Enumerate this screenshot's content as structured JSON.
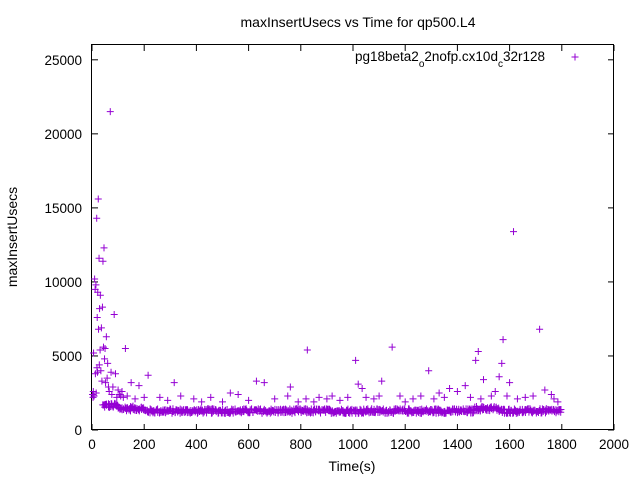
{
  "chart_data": {
    "type": "scatter",
    "title": "maxInsertUsecs vs Time for qp500.L4",
    "xlabel": "Time(s)",
    "ylabel": "maxInsertUsecs",
    "xlim": [
      0,
      2000
    ],
    "ylim": [
      0,
      26000
    ],
    "x_ticks": [
      0,
      200,
      400,
      600,
      800,
      1000,
      1200,
      1400,
      1600,
      1800,
      2000
    ],
    "y_ticks": [
      0,
      5000,
      10000,
      15000,
      20000,
      25000
    ],
    "x_tick_labels": [
      "0",
      "200",
      "400",
      "600",
      "800",
      "1000",
      "1200",
      "1400",
      "1600",
      "1800",
      "2000"
    ],
    "y_tick_labels": [
      "0",
      "5000",
      "10000",
      "15000",
      "20000",
      "25000"
    ],
    "grid": false,
    "legend_position": "top-right",
    "series": [
      {
        "name_parts": [
          "pg18beta2",
          "o",
          "2nofp.cx10d",
          "c",
          "32r128"
        ],
        "color": "#9400d3",
        "marker": "plus",
        "outliers": [
          [
            2,
            2400
          ],
          [
            4,
            2200
          ],
          [
            5,
            2600
          ],
          [
            6,
            5200
          ],
          [
            8,
            2300
          ],
          [
            10,
            10200
          ],
          [
            12,
            9500
          ],
          [
            13,
            3800
          ],
          [
            15,
            9800
          ],
          [
            16,
            2500
          ],
          [
            18,
            14300
          ],
          [
            19,
            4200
          ],
          [
            20,
            7600
          ],
          [
            21,
            3900
          ],
          [
            22,
            9300
          ],
          [
            24,
            15600
          ],
          [
            25,
            6800
          ],
          [
            27,
            11600
          ],
          [
            28,
            4400
          ],
          [
            29,
            8200
          ],
          [
            31,
            5400
          ],
          [
            32,
            9100
          ],
          [
            34,
            4000
          ],
          [
            36,
            6900
          ],
          [
            38,
            3300
          ],
          [
            40,
            8300
          ],
          [
            42,
            11400
          ],
          [
            44,
            5600
          ],
          [
            46,
            12300
          ],
          [
            48,
            4800
          ],
          [
            50,
            5500
          ],
          [
            52,
            3200
          ],
          [
            55,
            6300
          ],
          [
            58,
            3500
          ],
          [
            60,
            4500
          ],
          [
            63,
            2900
          ],
          [
            66,
            2600
          ],
          [
            70,
            21500
          ],
          [
            73,
            3900
          ],
          [
            76,
            2400
          ],
          [
            80,
            2900
          ],
          [
            85,
            7800
          ],
          [
            90,
            3800
          ],
          [
            95,
            2200
          ],
          [
            100,
            2700
          ],
          [
            105,
            2400
          ],
          [
            110,
            2300
          ],
          [
            115,
            2600
          ],
          [
            120,
            2200
          ],
          [
            128,
            5500
          ],
          [
            135,
            2300
          ],
          [
            150,
            3200
          ],
          [
            165,
            2100
          ],
          [
            180,
            3000
          ],
          [
            200,
            2200
          ],
          [
            215,
            3700
          ],
          [
            260,
            2200
          ],
          [
            290,
            2000
          ],
          [
            315,
            3200
          ],
          [
            340,
            2300
          ],
          [
            390,
            2100
          ],
          [
            420,
            1900
          ],
          [
            455,
            2200
          ],
          [
            500,
            1900
          ],
          [
            530,
            2500
          ],
          [
            560,
            2400
          ],
          [
            600,
            2000
          ],
          [
            630,
            3300
          ],
          [
            660,
            3200
          ],
          [
            700,
            2100
          ],
          [
            750,
            2300
          ],
          [
            760,
            2900
          ],
          [
            790,
            1900
          ],
          [
            820,
            2100
          ],
          [
            825,
            5400
          ],
          [
            850,
            1900
          ],
          [
            870,
            2200
          ],
          [
            900,
            2100
          ],
          [
            920,
            2300
          ],
          [
            950,
            2000
          ],
          [
            980,
            2200
          ],
          [
            1010,
            4700
          ],
          [
            1020,
            3100
          ],
          [
            1035,
            2800
          ],
          [
            1050,
            2200
          ],
          [
            1080,
            2100
          ],
          [
            1100,
            2300
          ],
          [
            1110,
            3300
          ],
          [
            1150,
            5600
          ],
          [
            1180,
            2300
          ],
          [
            1200,
            1900
          ],
          [
            1230,
            2100
          ],
          [
            1260,
            2300
          ],
          [
            1290,
            4000
          ],
          [
            1310,
            2100
          ],
          [
            1330,
            2500
          ],
          [
            1350,
            2200
          ],
          [
            1370,
            2800
          ],
          [
            1400,
            2600
          ],
          [
            1430,
            3000
          ],
          [
            1450,
            2200
          ],
          [
            1470,
            4700
          ],
          [
            1480,
            5300
          ],
          [
            1490,
            2100
          ],
          [
            1500,
            3400
          ],
          [
            1530,
            2300
          ],
          [
            1545,
            2600
          ],
          [
            1560,
            3600
          ],
          [
            1570,
            4500
          ],
          [
            1575,
            6100
          ],
          [
            1590,
            2300
          ],
          [
            1600,
            3200
          ],
          [
            1615,
            13400
          ],
          [
            1630,
            2100
          ],
          [
            1660,
            2200
          ],
          [
            1690,
            2300
          ],
          [
            1715,
            6800
          ],
          [
            1735,
            2700
          ],
          [
            1760,
            2400
          ],
          [
            1770,
            2100
          ],
          [
            1785,
            1900
          ]
        ]
      }
    ]
  }
}
